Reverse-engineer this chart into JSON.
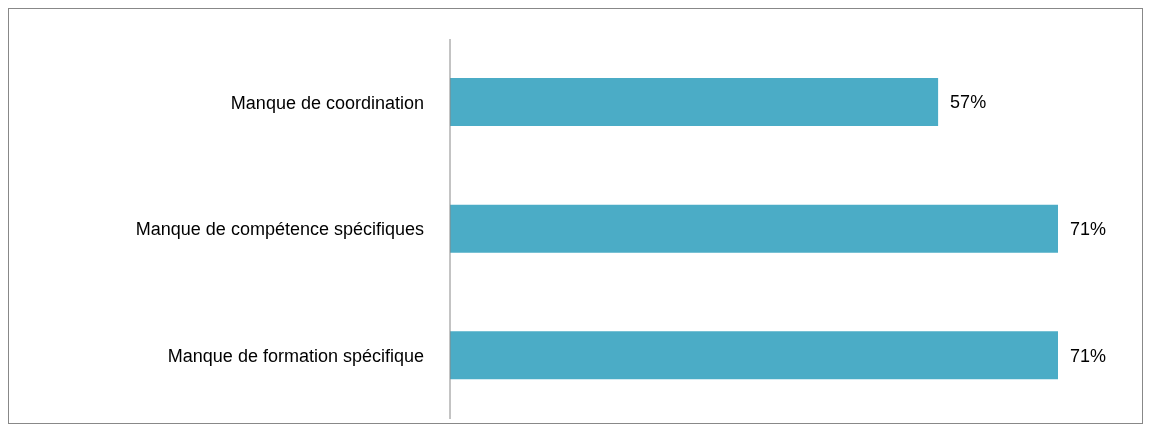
{
  "chart_data": {
    "type": "bar",
    "orientation": "horizontal",
    "categories": [
      "Manque de coordination",
      "Manque de compétence spécifiques",
      "Manque de formation spécifique"
    ],
    "values": [
      57,
      71,
      71
    ],
    "color": "#4bacc6",
    "value_labels": [
      "57%",
      "71%",
      "71%"
    ],
    "grid": false,
    "legend": false
  }
}
